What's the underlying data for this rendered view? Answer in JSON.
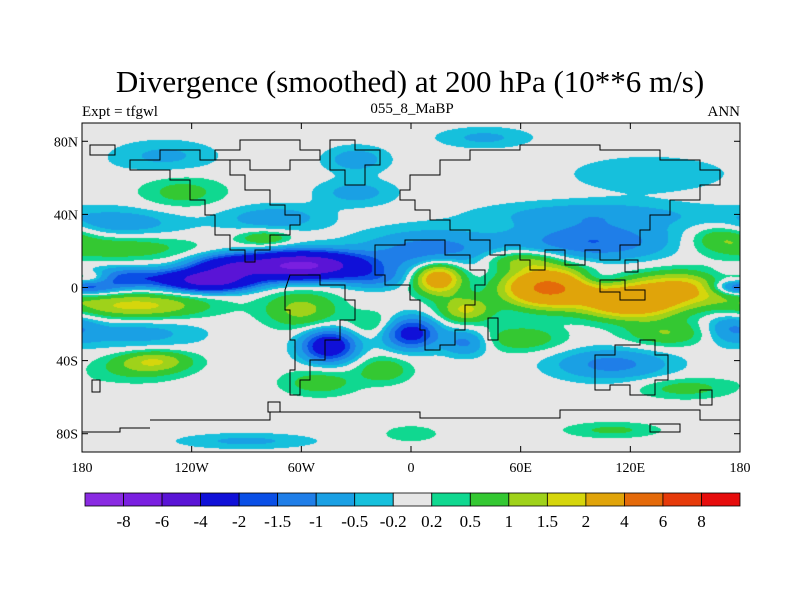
{
  "chart_data": {
    "type": "heatmap",
    "title": "Divergence (smoothed) at 200 hPa (10**6 m/s)",
    "subtitle_left": "Expt = tfgwl",
    "subtitle_center": "055_8_MaBP",
    "subtitle_right": "ANN",
    "x_range": [
      -180,
      180
    ],
    "y_range": [
      -90,
      90
    ],
    "x_ticks": [
      {
        "value": -180,
        "label": "180"
      },
      {
        "value": -120,
        "label": "120W"
      },
      {
        "value": -60,
        "label": "60W"
      },
      {
        "value": 0,
        "label": "0"
      },
      {
        "value": 60,
        "label": "60E"
      },
      {
        "value": 120,
        "label": "120E"
      },
      {
        "value": 180,
        "label": "180"
      }
    ],
    "y_ticks": [
      {
        "value": 80,
        "label": "80N"
      },
      {
        "value": 40,
        "label": "40N"
      },
      {
        "value": 0,
        "label": "0"
      },
      {
        "value": -40,
        "label": "40S"
      },
      {
        "value": -80,
        "label": "80S"
      }
    ],
    "colorbar": {
      "levels": [
        {
          "value": -8,
          "label": "-8"
        },
        {
          "value": -6,
          "label": "-6"
        },
        {
          "value": -4,
          "label": "-4"
        },
        {
          "value": -2,
          "label": "-2"
        },
        {
          "value": -1.5,
          "label": "-1.5"
        },
        {
          "value": -1,
          "label": "-1"
        },
        {
          "value": -0.5,
          "label": "-0.5"
        },
        {
          "value": -0.2,
          "label": "-0.2"
        },
        {
          "value": 0.2,
          "label": "0.2"
        },
        {
          "value": 0.5,
          "label": "0.5"
        },
        {
          "value": 1,
          "label": "1"
        },
        {
          "value": 1.5,
          "label": "1.5"
        },
        {
          "value": 2,
          "label": "2"
        },
        {
          "value": 4,
          "label": "4"
        },
        {
          "value": 6,
          "label": "6"
        },
        {
          "value": 8,
          "label": "8"
        }
      ],
      "colors": [
        "#8a2be2",
        "#7a1fe0",
        "#5a14d6",
        "#1010d8",
        "#0a4fe6",
        "#1f7ee8",
        "#1aa0e4",
        "#16c0dc",
        "#e6e6e6",
        "#10d890",
        "#34c832",
        "#9fd21a",
        "#d6d60c",
        "#e0a40a",
        "#e46a0a",
        "#e63a0a",
        "#e60c0c"
      ]
    },
    "fields": [
      {
        "lon": -160,
        "lat": 5,
        "value": -2,
        "sx": 22,
        "sy": 4
      },
      {
        "lon": -110,
        "lat": 4,
        "value": -5,
        "sx": 16,
        "sy": 4
      },
      {
        "lon": -150,
        "lat": -10,
        "value": 1.7,
        "sx": 26,
        "sy": 5
      },
      {
        "lon": -160,
        "lat": 22,
        "value": 0.9,
        "sx": 28,
        "sy": 5
      },
      {
        "lon": -175,
        "lat": 5,
        "value": 1.6,
        "sx": 9,
        "sy": 3
      },
      {
        "lon": -160,
        "lat": 35,
        "value": -0.8,
        "sx": 25,
        "sy": 6
      },
      {
        "lon": -150,
        "lat": -25,
        "value": -0.7,
        "sx": 25,
        "sy": 6
      },
      {
        "lon": -150,
        "lat": -45,
        "value": 0.6,
        "sx": 18,
        "sy": 5
      },
      {
        "lon": -140,
        "lat": -40,
        "value": 1.3,
        "sx": 14,
        "sy": 4
      },
      {
        "lon": -125,
        "lat": 52,
        "value": 0.7,
        "sx": 16,
        "sy": 6
      },
      {
        "lon": -135,
        "lat": 72,
        "value": -0.6,
        "sx": 20,
        "sy": 6
      },
      {
        "lon": -75,
        "lat": 38,
        "value": -0.8,
        "sx": 20,
        "sy": 5
      },
      {
        "lon": -80,
        "lat": 27,
        "value": 1.0,
        "sx": 10,
        "sy": 3
      },
      {
        "lon": -60,
        "lat": 12,
        "value": -6.5,
        "sx": 22,
        "sy": 5
      },
      {
        "lon": -100,
        "lat": 12,
        "value": -2.5,
        "sx": 14,
        "sy": 4
      },
      {
        "lon": -60,
        "lat": -12,
        "value": 1.2,
        "sx": 14,
        "sy": 7
      },
      {
        "lon": -45,
        "lat": -32,
        "value": -3.0,
        "sx": 10,
        "sy": 6
      },
      {
        "lon": -50,
        "lat": -52,
        "value": 0.8,
        "sx": 14,
        "sy": 5
      },
      {
        "lon": -20,
        "lat": 5,
        "value": -1.0,
        "sx": 12,
        "sy": 4
      },
      {
        "lon": 0,
        "lat": -25,
        "value": -2.5,
        "sx": 10,
        "sy": 6
      },
      {
        "lon": 10,
        "lat": 20,
        "value": -1.3,
        "sx": 26,
        "sy": 8
      },
      {
        "lon": -15,
        "lat": -45,
        "value": 0.9,
        "sx": 10,
        "sy": 5
      },
      {
        "lon": -30,
        "lat": 52,
        "value": -0.7,
        "sx": 15,
        "sy": 5
      },
      {
        "lon": -30,
        "lat": 70,
        "value": -0.8,
        "sx": 12,
        "sy": 5
      },
      {
        "lon": -20,
        "lat": -20,
        "value": 0.6,
        "sx": 10,
        "sy": 5
      },
      {
        "lon": 15,
        "lat": 5,
        "value": 3.0,
        "sx": 9,
        "sy": 6
      },
      {
        "lon": 30,
        "lat": -12,
        "value": 1.6,
        "sx": 10,
        "sy": 5
      },
      {
        "lon": 30,
        "lat": -30,
        "value": -1.2,
        "sx": 9,
        "sy": 5
      },
      {
        "lon": 75,
        "lat": 0,
        "value": 4.5,
        "sx": 16,
        "sy": 7
      },
      {
        "lon": 60,
        "lat": 15,
        "value": 1.2,
        "sx": 15,
        "sy": 4
      },
      {
        "lon": 60,
        "lat": -28,
        "value": 0.9,
        "sx": 16,
        "sy": 5
      },
      {
        "lon": 120,
        "lat": -8,
        "value": 3.5,
        "sx": 18,
        "sy": 6
      },
      {
        "lon": 150,
        "lat": 0,
        "value": 2.3,
        "sx": 20,
        "sy": 6
      },
      {
        "lon": 100,
        "lat": 25,
        "value": -1.5,
        "sx": 30,
        "sy": 7
      },
      {
        "lon": 100,
        "lat": 40,
        "value": -0.8,
        "sx": 40,
        "sy": 5
      },
      {
        "lon": 130,
        "lat": 62,
        "value": -0.5,
        "sx": 30,
        "sy": 7
      },
      {
        "lon": 110,
        "lat": -42,
        "value": -1.2,
        "sx": 22,
        "sy": 6
      },
      {
        "lon": 140,
        "lat": -25,
        "value": 1.0,
        "sx": 16,
        "sy": 5
      },
      {
        "lon": 150,
        "lat": -55,
        "value": 0.7,
        "sx": 18,
        "sy": 4
      },
      {
        "lon": 170,
        "lat": 28,
        "value": 0.9,
        "sx": 12,
        "sy": 5
      },
      {
        "lon": 175,
        "lat": -22,
        "value": -0.9,
        "sx": 10,
        "sy": 6
      },
      {
        "lon": 180,
        "lat": 0,
        "value": -2.0,
        "sx": 12,
        "sy": 3
      },
      {
        "lon": 100,
        "lat": 5,
        "value": -0.6,
        "sx": 10,
        "sy": 3
      },
      {
        "lon": -90,
        "lat": -84,
        "value": -0.6,
        "sx": 26,
        "sy": 3
      },
      {
        "lon": 0,
        "lat": -80,
        "value": 0.5,
        "sx": 10,
        "sy": 3
      },
      {
        "lon": 110,
        "lat": -78,
        "value": 0.6,
        "sx": 18,
        "sy": 3
      },
      {
        "lon": 40,
        "lat": 82,
        "value": -0.6,
        "sx": 18,
        "sy": 4
      }
    ]
  }
}
